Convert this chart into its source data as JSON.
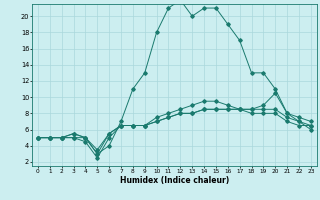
{
  "xlabel": "Humidex (Indice chaleur)",
  "bg_color": "#cceef0",
  "line_color": "#1a7a6e",
  "grid_color": "#aad8dc",
  "xlim": [
    -0.5,
    23.5
  ],
  "ylim": [
    1.5,
    21.5
  ],
  "yticks": [
    2,
    4,
    6,
    8,
    10,
    12,
    14,
    16,
    18,
    20
  ],
  "xticks": [
    0,
    1,
    2,
    3,
    4,
    5,
    6,
    7,
    8,
    9,
    10,
    11,
    12,
    13,
    14,
    15,
    16,
    17,
    18,
    19,
    20,
    21,
    22,
    23
  ],
  "series": [
    {
      "x": [
        0,
        1,
        2,
        3,
        4,
        5,
        6,
        7,
        8,
        9,
        10,
        11,
        12,
        13,
        14,
        15,
        16,
        17,
        18,
        19,
        20,
        21,
        22,
        23
      ],
      "y": [
        5,
        5,
        5,
        5,
        5,
        3,
        4,
        7,
        11,
        13,
        18,
        21,
        22,
        20,
        21,
        21,
        19,
        17,
        13,
        13,
        11,
        8,
        7,
        6
      ]
    },
    {
      "x": [
        0,
        1,
        2,
        3,
        4,
        5,
        6,
        7,
        8,
        9,
        10,
        11,
        12,
        13,
        14,
        15,
        16,
        17,
        18,
        19,
        20,
        21,
        22,
        23
      ],
      "y": [
        5,
        5,
        5,
        5,
        4.5,
        2.5,
        5,
        6.5,
        6.5,
        6.5,
        7,
        7.5,
        8,
        8,
        8.5,
        8.5,
        8.5,
        8.5,
        8.5,
        8.5,
        8.5,
        7.5,
        7,
        6.5
      ]
    },
    {
      "x": [
        0,
        1,
        2,
        3,
        4,
        5,
        6,
        7,
        8,
        9,
        10,
        11,
        12,
        13,
        14,
        15,
        16,
        17,
        18,
        19,
        20,
        21,
        22,
        23
      ],
      "y": [
        5,
        5,
        5,
        5.5,
        5,
        3,
        5.5,
        6.5,
        6.5,
        6.5,
        7,
        7.5,
        8,
        8,
        8.5,
        8.5,
        8.5,
        8.5,
        8.5,
        9,
        10.5,
        8,
        7.5,
        7
      ]
    },
    {
      "x": [
        0,
        1,
        2,
        3,
        4,
        5,
        6,
        7,
        8,
        9,
        10,
        11,
        12,
        13,
        14,
        15,
        16,
        17,
        18,
        19,
        20,
        21,
        22,
        23
      ],
      "y": [
        5,
        5,
        5,
        5.5,
        5,
        3.5,
        5.5,
        6.5,
        6.5,
        6.5,
        7.5,
        8,
        8.5,
        9,
        9.5,
        9.5,
        9,
        8.5,
        8,
        8,
        8,
        7,
        6.5,
        6.5
      ]
    }
  ]
}
